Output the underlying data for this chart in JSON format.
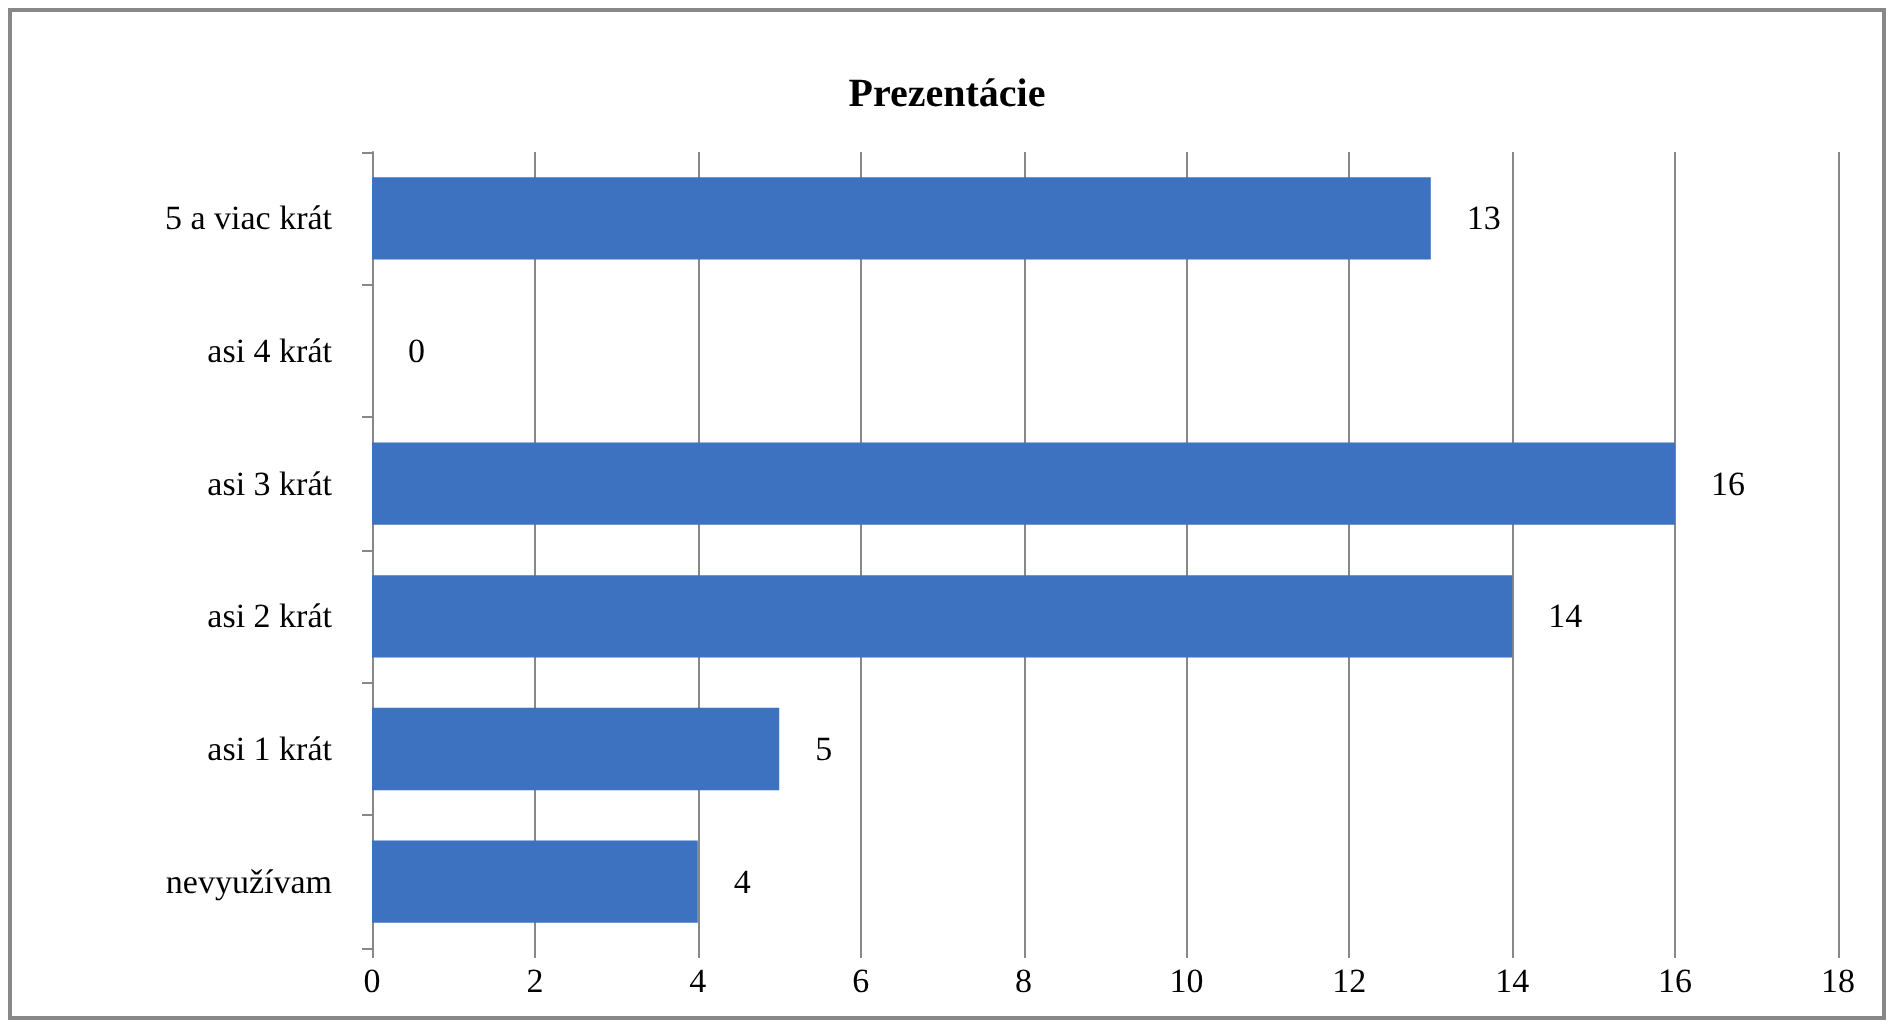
{
  "chart_data": {
    "type": "bar",
    "orientation": "horizontal",
    "title": "Prezentácie",
    "categories": [
      "5 a viac krát",
      "asi 4 krát",
      "asi 3 krát",
      "asi 2 krát",
      "asi 1 krát",
      "nevyužívam"
    ],
    "values": [
      13,
      0,
      16,
      14,
      5,
      4
    ],
    "color": "#3c72bf",
    "xlim": [
      0,
      18
    ],
    "xticks": [
      0,
      2,
      4,
      6,
      8,
      10,
      12,
      14,
      16,
      18
    ],
    "grid": "x",
    "data_labels": true
  }
}
